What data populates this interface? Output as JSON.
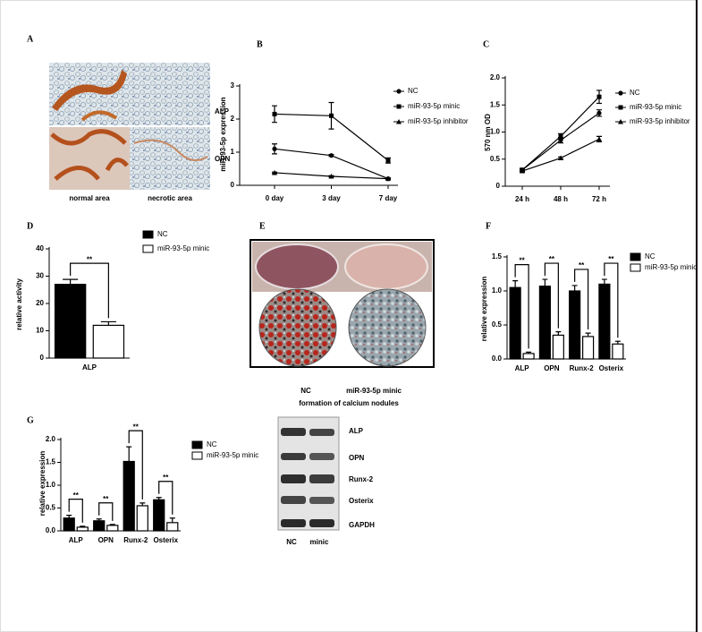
{
  "panels": {
    "A": {
      "label": "A",
      "rows": [
        "ALP",
        "OPN"
      ],
      "columns": [
        "normal area",
        "necrotic area"
      ]
    },
    "E": {
      "label": "E",
      "columns": [
        "NC",
        "miR-93-5p minic"
      ],
      "caption": "formation of calcium nodules"
    },
    "blot": {
      "bands": [
        "ALP",
        "OPN",
        "Runx-2",
        "Osterix",
        "GAPDH"
      ],
      "lanes": [
        "NC",
        "minic"
      ]
    }
  },
  "chart_data": [
    {
      "label": "B",
      "type": "line",
      "ylabel": "miR-93-5p expression",
      "categories": [
        "0 day",
        "3 day",
        "7 day"
      ],
      "ylim": [
        0,
        3
      ],
      "yticks": [
        0,
        1,
        2,
        3
      ],
      "series": [
        {
          "name": "NC",
          "color": "#000000",
          "marker": "circle",
          "values": [
            1.1,
            0.9,
            0.2
          ],
          "errors": [
            0.15,
            0.03,
            0.02
          ]
        },
        {
          "name": "miR-93-5p minic",
          "color": "#000000",
          "marker": "square",
          "values": [
            2.15,
            2.1,
            0.75
          ],
          "errors": [
            0.25,
            0.4,
            0.08
          ]
        },
        {
          "name": "miR-93-5p inhibitor",
          "color": "#000000",
          "marker": "triangle",
          "values": [
            0.38,
            0.27,
            0.2
          ],
          "errors": [
            0.02,
            0.02,
            0.02
          ]
        }
      ]
    },
    {
      "label": "C",
      "type": "line",
      "ylabel": "570 nm OD",
      "categories": [
        "24 h",
        "48 h",
        "72 h"
      ],
      "ylim": [
        0,
        2
      ],
      "yticks": [
        0,
        0.5,
        {
          "value": 1,
          "label": "1.0"
        },
        1.5,
        {
          "value": 2,
          "label": "2.0"
        }
      ],
      "series": [
        {
          "name": "NC",
          "color": "#000000",
          "marker": "circle",
          "values": [
            0.3,
            0.85,
            1.35
          ],
          "errors": [
            0.02,
            0.05,
            0.06
          ]
        },
        {
          "name": "miR-93-5p minic",
          "color": "#000000",
          "marker": "square",
          "values": [
            0.3,
            0.92,
            1.65
          ],
          "errors": [
            0.03,
            0.05,
            0.12
          ]
        },
        {
          "name": "miR-93-5p inhibitor",
          "color": "#000000",
          "marker": "triangle",
          "values": [
            0.28,
            0.52,
            0.87
          ],
          "errors": [
            0.02,
            0.02,
            0.05
          ]
        }
      ]
    },
    {
      "label": "D",
      "type": "bar",
      "ylabel": "relative activity",
      "categories": [
        "ALP"
      ],
      "ylim": [
        0,
        40
      ],
      "yticks": [
        0,
        10,
        20,
        30,
        40
      ],
      "annotations": [
        "**"
      ],
      "series": [
        {
          "name": "NC",
          "color": "#000000",
          "values": [
            27
          ],
          "errors": [
            1.8
          ]
        },
        {
          "name": "miR-93-5p minic",
          "color": "#ffffff",
          "values": [
            12
          ],
          "errors": [
            1.3
          ]
        }
      ]
    },
    {
      "label": "F",
      "type": "bar",
      "ylabel": "relative expression",
      "categories": [
        "ALP",
        "OPN",
        "Runx-2",
        "Osterix"
      ],
      "ylim": [
        0,
        1.5
      ],
      "yticks": [
        {
          "value": 0,
          "label": "0.0"
        },
        0.5,
        {
          "value": 1,
          "label": "1.0"
        },
        1.5
      ],
      "annotations": [
        "**",
        "**",
        "**",
        "**"
      ],
      "series": [
        {
          "name": "NC",
          "color": "#000000",
          "values": [
            1.05,
            1.07,
            1.0,
            1.1
          ],
          "errors": [
            0.1,
            0.1,
            0.08,
            0.07
          ]
        },
        {
          "name": "miR-93-5p minic",
          "color": "#ffffff",
          "values": [
            0.08,
            0.35,
            0.33,
            0.22
          ],
          "errors": [
            0.02,
            0.05,
            0.05,
            0.04
          ]
        }
      ]
    },
    {
      "label": "G",
      "type": "bar",
      "ylabel": "relative expression",
      "categories": [
        "ALP",
        "OPN",
        "Runx-2",
        "Osterix"
      ],
      "ylim": [
        0,
        2
      ],
      "yticks": [
        {
          "value": 0,
          "label": "0.0"
        },
        0.5,
        {
          "value": 1,
          "label": "1.0"
        },
        1.5,
        {
          "value": 2,
          "label": "2.0"
        }
      ],
      "annotations": [
        "**",
        "**",
        "**",
        "**"
      ],
      "series": [
        {
          "name": "NC",
          "color": "#000000",
          "values": [
            0.28,
            0.22,
            1.52,
            0.68
          ],
          "errors": [
            0.06,
            0.04,
            0.32,
            0.05
          ]
        },
        {
          "name": "miR-93-5p minic",
          "color": "#ffffff",
          "values": [
            0.08,
            0.12,
            0.55,
            0.18
          ],
          "errors": [
            0.02,
            0.02,
            0.06,
            0.1
          ]
        }
      ]
    }
  ]
}
